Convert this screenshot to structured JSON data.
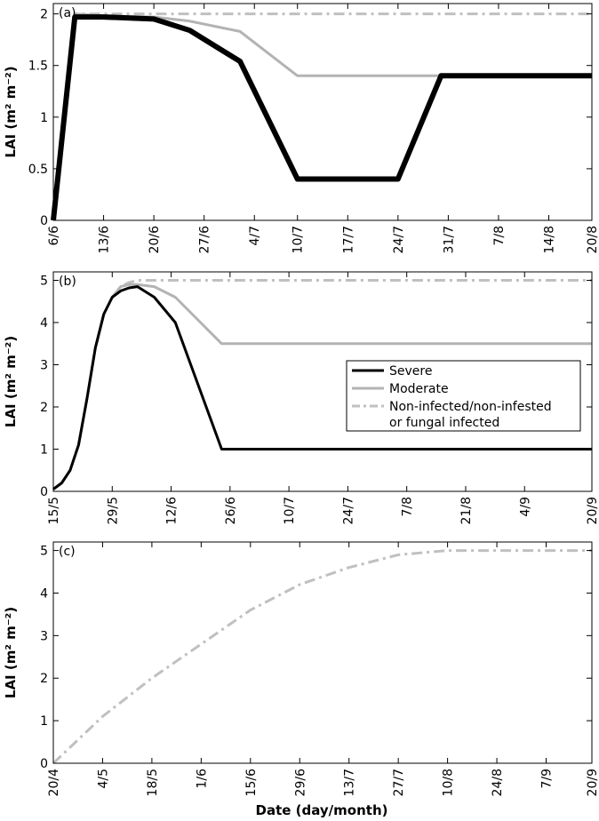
{
  "figure": {
    "xlabel_text": "Date (day/month)",
    "legend": {
      "items": [
        {
          "label_lines": [
            "Severe"
          ],
          "color": "#000000",
          "dash": "solid",
          "width": 3
        },
        {
          "label_lines": [
            "Moderate"
          ],
          "color": "#b3b3b3",
          "dash": "solid",
          "width": 3
        },
        {
          "label_lines": [
            "Non-infected/non-infested",
            "or fungal infected"
          ],
          "color": "#c0c0c0",
          "dash": "dashdot",
          "width": 3
        }
      ]
    }
  },
  "chart_data": [
    {
      "type": "line",
      "panel_label": "(a)",
      "ylabel": "LAI (m² m⁻²)",
      "ylim": [
        0,
        2.1
      ],
      "yticks": [
        0,
        0.5,
        1,
        1.5,
        2
      ],
      "ytick_labels": [
        "0",
        "0.5",
        "1",
        "1.5",
        "2"
      ],
      "xlim": [
        "6/6",
        "20/8"
      ],
      "xticks": [
        "6/6",
        "13/6",
        "20/6",
        "27/6",
        "4/7",
        "10/7",
        "17/7",
        "24/7",
        "31/7",
        "7/8",
        "14/8",
        "20/8"
      ],
      "series": [
        {
          "name": "Non-infected/non-infested or fungal infected",
          "color": "#c0c0c0",
          "dash": "dashdot",
          "width": 3,
          "x": [
            "6/6",
            "9/6",
            "20/8"
          ],
          "y": [
            0,
            2.0,
            2.0
          ]
        },
        {
          "name": "Moderate",
          "color": "#b3b3b3",
          "dash": "solid",
          "width": 3,
          "x": [
            "6/6",
            "9/6",
            "13/6",
            "20/6",
            "25/6",
            "2/7",
            "10/7",
            "20/8"
          ],
          "y": [
            0,
            2.0,
            1.98,
            1.97,
            1.93,
            1.83,
            1.4,
            1.4
          ]
        },
        {
          "name": "Severe",
          "color": "#000000",
          "dash": "solid",
          "width": 6,
          "x": [
            "6/6",
            "9/6",
            "13/6",
            "20/6",
            "25/6",
            "2/7",
            "10/7",
            "24/7",
            "30/7",
            "20/8"
          ],
          "y": [
            0,
            1.97,
            1.97,
            1.95,
            1.84,
            1.54,
            0.4,
            0.4,
            1.4,
            1.4
          ]
        }
      ]
    },
    {
      "type": "line",
      "panel_label": "(b)",
      "ylabel": "LAI (m² m⁻²)",
      "ylim": [
        0,
        5.2
      ],
      "yticks": [
        0,
        1,
        2,
        3,
        4,
        5
      ],
      "ytick_labels": [
        "0",
        "1",
        "2",
        "3",
        "4",
        "5"
      ],
      "xlim": [
        "15/5",
        "20/9"
      ],
      "xticks": [
        "15/5",
        "29/5",
        "12/6",
        "26/6",
        "10/7",
        "24/7",
        "7/8",
        "21/8",
        "4/9",
        "20/9"
      ],
      "series": [
        {
          "name": "Non-infected/non-infested or fungal infected",
          "color": "#c0c0c0",
          "dash": "dashdot",
          "width": 3,
          "x": [
            "15/5",
            "17/5",
            "19/5",
            "21/5",
            "23/5",
            "25/5",
            "27/5",
            "29/5",
            "31/5",
            "2/6",
            "4/6",
            "20/9"
          ],
          "y": [
            0.05,
            0.2,
            0.5,
            1.1,
            2.2,
            3.4,
            4.2,
            4.6,
            4.85,
            4.95,
            5.0,
            5.0
          ]
        },
        {
          "name": "Moderate",
          "color": "#b3b3b3",
          "dash": "solid",
          "width": 3,
          "x": [
            "15/5",
            "17/5",
            "19/5",
            "21/5",
            "23/5",
            "25/5",
            "27/5",
            "29/5",
            "31/5",
            "2/6",
            "4/6",
            "8/6",
            "13/6",
            "24/6",
            "20/9"
          ],
          "y": [
            0.05,
            0.2,
            0.5,
            1.1,
            2.2,
            3.4,
            4.2,
            4.6,
            4.85,
            4.9,
            4.9,
            4.85,
            4.6,
            3.5,
            3.5
          ]
        },
        {
          "name": "Severe",
          "color": "#000000",
          "dash": "solid",
          "width": 3,
          "x": [
            "15/5",
            "17/5",
            "19/5",
            "21/5",
            "23/5",
            "25/5",
            "27/5",
            "29/5",
            "31/5",
            "2/6",
            "4/6",
            "8/6",
            "13/6",
            "24/6",
            "20/9"
          ],
          "y": [
            0.05,
            0.2,
            0.5,
            1.1,
            2.2,
            3.4,
            4.2,
            4.6,
            4.75,
            4.82,
            4.85,
            4.6,
            4.0,
            1.0,
            1.0
          ]
        }
      ]
    },
    {
      "type": "line",
      "panel_label": "(c)",
      "ylabel": "LAI (m² m⁻²)",
      "ylim": [
        0,
        5.2
      ],
      "yticks": [
        0,
        1,
        2,
        3,
        4,
        5
      ],
      "ytick_labels": [
        "0",
        "1",
        "2",
        "3",
        "4",
        "5"
      ],
      "xlim": [
        "20/4",
        "20/9"
      ],
      "xticks": [
        "20/4",
        "4/5",
        "18/5",
        "1/6",
        "15/6",
        "29/6",
        "13/7",
        "27/7",
        "10/8",
        "24/8",
        "7/9",
        "20/9"
      ],
      "series": [
        {
          "name": "Non-infected/non-infested or fungal infected",
          "color": "#c0c0c0",
          "dash": "dashdot",
          "width": 3,
          "x": [
            "20/4",
            "4/5",
            "18/5",
            "1/6",
            "15/6",
            "29/6",
            "13/7",
            "27/7",
            "10/8",
            "20/9"
          ],
          "y": [
            0.0,
            1.1,
            2.0,
            2.8,
            3.6,
            4.2,
            4.6,
            4.9,
            5.0,
            5.0
          ]
        }
      ]
    }
  ]
}
